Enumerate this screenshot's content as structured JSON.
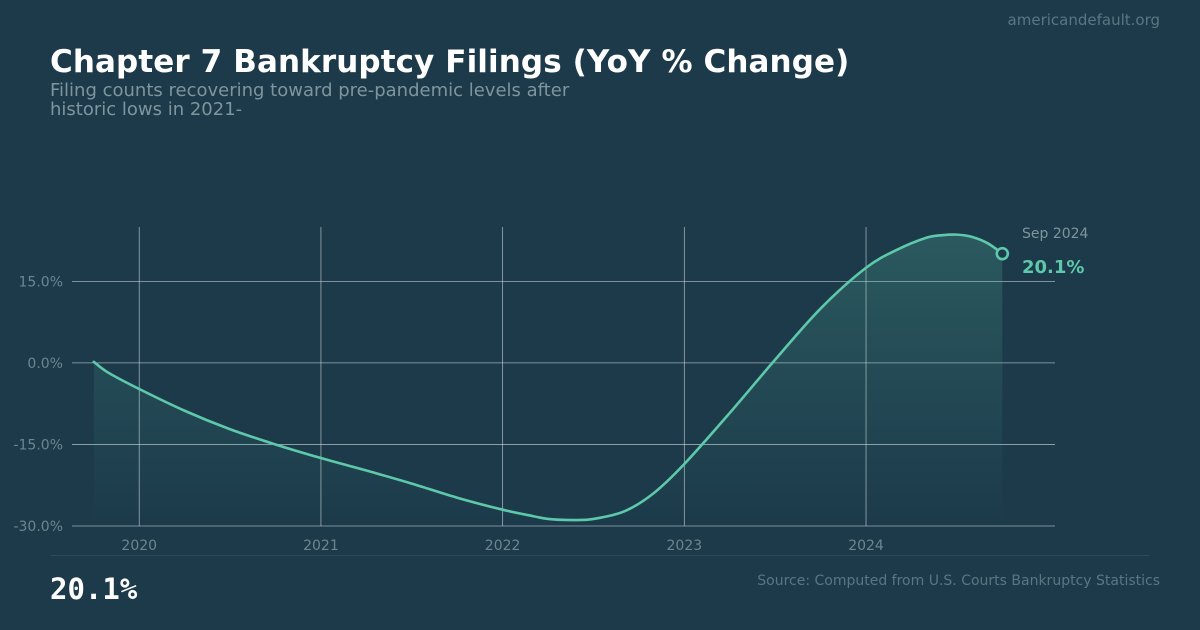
{
  "header": {
    "site": "americandefault.org",
    "title": "Chapter 7 Bankruptcy Filings (YoY % Change)",
    "subtitle_line1": "Filing counts recovering toward pre-pandemic levels after",
    "subtitle_line2": "historic lows in 2021-"
  },
  "footer": {
    "big_value": "20.1%",
    "source": "Source: Computed from U.S. Courts Bankruptcy Statistics"
  },
  "colors": {
    "background": "#1c3a4a",
    "line": "#5ec9aa",
    "grid": "#c9d3d8",
    "tick_text": "#6e858f",
    "annotation_date": "#7f959e"
  },
  "chart_data": {
    "type": "line",
    "title": "Chapter 7 Bankruptcy Filings (YoY % Change)",
    "xlabel": "",
    "ylabel": "",
    "x_ticks": [
      "2020",
      "2021",
      "2022",
      "2023",
      "2024"
    ],
    "y_ticks": [
      "15.0%",
      "0.0%",
      "-15.0%",
      "-30.0%"
    ],
    "y_tick_values": [
      15,
      0,
      -15,
      -30
    ],
    "ylim": [
      -30,
      25
    ],
    "xlim": [
      2019.63,
      2025.04
    ],
    "grid": true,
    "series": [
      {
        "x": [
          2019.75,
          2019.83,
          2020.0,
          2020.25,
          2020.5,
          2020.75,
          2021.0,
          2021.25,
          2021.5,
          2021.75,
          2022.0,
          2022.17,
          2022.25,
          2022.38,
          2022.5,
          2022.67,
          2022.83,
          2023.0,
          2023.25,
          2023.5,
          2023.75,
          2024.0,
          2024.17,
          2024.33,
          2024.42,
          2024.5,
          2024.58,
          2024.67,
          2024.75
        ],
        "y": [
          0.2,
          -1.8,
          -4.8,
          -8.8,
          -12.2,
          -15.0,
          -17.5,
          -19.8,
          -22.2,
          -24.8,
          -27.0,
          -28.2,
          -28.7,
          -28.9,
          -28.7,
          -27.3,
          -24.0,
          -18.6,
          -9.2,
          0.6,
          10.0,
          17.5,
          20.8,
          23.0,
          23.5,
          23.6,
          23.2,
          22.0,
          20.1
        ]
      }
    ],
    "annotation": {
      "date": "Sep 2024",
      "value_label": "20.1%",
      "x": 2024.75,
      "y": 20.1
    }
  }
}
